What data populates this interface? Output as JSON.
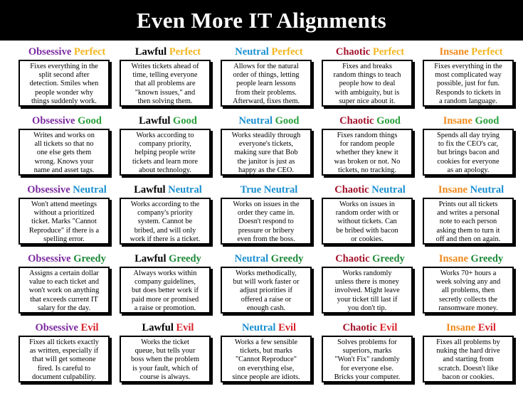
{
  "title": "Even More IT Alignments",
  "colors": {
    "Obsessive": "#7b2aa0",
    "Lawful": "#000000",
    "Neutral": "#1a8fd0",
    "True": "#1a8fd0",
    "Chaotic": "#a3122b",
    "Insane": "#f08a1c",
    "Perfect": "#f2b51d",
    "Good": "#27a03a",
    "NeutralAxis": "#1a8fd0",
    "Greedy": "#1f8a3a",
    "Evil": "#d8222a"
  },
  "rows": [
    {
      "axis": "Perfect",
      "cells": [
        {
          "first": "Obsessive",
          "second": "Perfect",
          "text": "Fixes everything in the\nsplit second after\ndetection. Smiles when\npeople wonder why\nthings suddenly work."
        },
        {
          "first": "Lawful",
          "second": "Perfect",
          "text": "Writes tickets ahead of\ntime, telling everyone\nthat all problems are\n\"known issues,\" and\nthen solving them."
        },
        {
          "first": "Neutral",
          "second": "Perfect",
          "text": "Allows for the natural\norder of things, letting\npeople learn lessons\nfrom their problems.\nAfterward, fixes them."
        },
        {
          "first": "Chaotic",
          "second": "Perfect",
          "text": "Fixes and breaks\nrandom things to teach\npeople how to deal\nwith ambiguity, but is\nsuper nice about it."
        },
        {
          "first": "Insane",
          "second": "Perfect",
          "text": "Fixes everything in the\nmost complicated way\npossible, just for fun.\nResponds to tickets in\na random language."
        }
      ]
    },
    {
      "axis": "Good",
      "cells": [
        {
          "first": "Obsessive",
          "second": "Good",
          "text": "Writes and works on\nall tickets so that no\none else gets them\nwrong.  Knows your\nname and asset tags."
        },
        {
          "first": "Lawful",
          "second": "Good",
          "text": "Works according to\ncompany priority,\nhelping people write\ntickets and learn more\nabout technology."
        },
        {
          "first": "Neutral",
          "second": "Good",
          "text": "Works steadily through\neveryone's tickets,\nmaking sure that Bob\nthe janitor is just as\nhappy as the CEO."
        },
        {
          "first": "Chaotic",
          "second": "Good",
          "text": "Fixes random things\nfor random people\nwhether they knew it\nwas broken or not.  No\ntickets, no tracking."
        },
        {
          "first": "Insane",
          "second": "Good",
          "text": "Spends all day trying\nto fix the CEO's car,\nbut brings bacon and\ncookies for everyone\nas an apology."
        }
      ]
    },
    {
      "axis": "Neutral",
      "cells": [
        {
          "first": "Obsessive",
          "second": "Neutral",
          "text": "Won't attend meetings\nwithout a prioritized\nticket.  Marks \"Cannot\nReproduce\" if there is a\nspelling error."
        },
        {
          "first": "Lawful",
          "second": "Neutral",
          "text": "Works according to the\ncompany's priority\nsystem.  Cannot be\nbribed, and will only\nwork if there is a ticket."
        },
        {
          "first": "True",
          "second": "Neutral",
          "text": "Works on issues in the\norder they came in.\nDoesn't respond to\npressure or bribery\neven from the boss."
        },
        {
          "first": "Chaotic",
          "second": "Neutral",
          "text": "Works on issues in\nrandom order with or\nwithout tickets.  Can\nbe bribed with bacon\nor cookies."
        },
        {
          "first": "Insane",
          "second": "Neutral",
          "text": "Prints out all tickets\nand writes a personal\nnote to each person\nasking them to turn it\noff and then on again."
        }
      ]
    },
    {
      "axis": "Greedy",
      "cells": [
        {
          "first": "Obsessive",
          "second": "Greedy",
          "text": "Assigns a certain dollar\nvalue to each ticket and\nwon't work on anything\nthat exceeds current IT\nsalary for the day."
        },
        {
          "first": "Lawful",
          "second": "Greedy",
          "text": "Always works within\ncompany guidelines,\nbut does better work if\npaid more or promised\na raise or promotion."
        },
        {
          "first": "Neutral",
          "second": "Greedy",
          "text": "Works methodically,\nbut will work faster or\nadjust priorities if\noffered a raise or\nenough cash."
        },
        {
          "first": "Chaotic",
          "second": "Greedy",
          "text": "Works randomly\nunless there is money\ninvolved.  Might leave\nyour ticket till last if\nyou don't tip."
        },
        {
          "first": "Insane",
          "second": "Greedy",
          "text": "Works 70+ hours a\nweek solving any and\nall problems, then\nsecretly collects the\nransomware money."
        }
      ]
    },
    {
      "axis": "Evil",
      "cells": [
        {
          "first": "Obsessive",
          "second": "Evil",
          "text": "Fixes all tickets exactly\nas written, especially if\nthat will get someone\nfired.  Is careful to\ndocument culpability."
        },
        {
          "first": "Lawful",
          "second": "Evil",
          "text": "Works the ticket\nqueue, but tells your\nboss when the problem\nis your fault, which of\ncourse is always."
        },
        {
          "first": "Neutral",
          "second": "Evil",
          "text": "Works a few sensible\ntickets, but marks\n\"Cannot Reproduce\"\non everything else,\nsince people are idiots."
        },
        {
          "first": "Chaotic",
          "second": "Evil",
          "text": "Solves problems for\nsuperiors, marks\n\"Won't Fix\" randomly\nfor everyone else.\nBricks your computer."
        },
        {
          "first": "Insane",
          "second": "Evil",
          "text": "Fixes all problems by\nnuking the hard drive\nand starting from\nscratch.  Doesn't like\nbacon or cookies."
        }
      ]
    }
  ]
}
